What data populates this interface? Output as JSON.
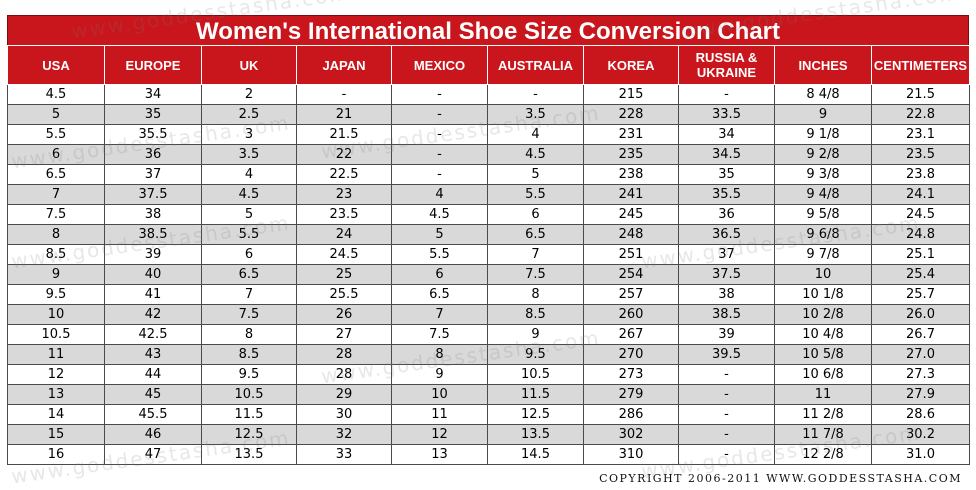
{
  "title": "Women's International Shoe Size Conversion Chart",
  "headers": [
    "USA",
    "EUROPE",
    "UK",
    "JAPAN",
    "MEXICO",
    "AUSTRALIA",
    "KOREA",
    "RUSSIA & UKRAINE",
    "INCHES",
    "CENTIMETERS"
  ],
  "rows": [
    [
      "4.5",
      "34",
      "2",
      "-",
      "-",
      "-",
      "215",
      "-",
      "8 4/8",
      "21.5"
    ],
    [
      "5",
      "35",
      "2.5",
      "21",
      "-",
      "3.5",
      "228",
      "33.5",
      "9",
      "22.8"
    ],
    [
      "5.5",
      "35.5",
      "3",
      "21.5",
      "-",
      "4",
      "231",
      "34",
      "9 1/8",
      "23.1"
    ],
    [
      "6",
      "36",
      "3.5",
      "22",
      "-",
      "4.5",
      "235",
      "34.5",
      "9 2/8",
      "23.5"
    ],
    [
      "6.5",
      "37",
      "4",
      "22.5",
      "-",
      "5",
      "238",
      "35",
      "9 3/8",
      "23.8"
    ],
    [
      "7",
      "37.5",
      "4.5",
      "23",
      "4",
      "5.5",
      "241",
      "35.5",
      "9 4/8",
      "24.1"
    ],
    [
      "7.5",
      "38",
      "5",
      "23.5",
      "4.5",
      "6",
      "245",
      "36",
      "9 5/8",
      "24.5"
    ],
    [
      "8",
      "38.5",
      "5.5",
      "24",
      "5",
      "6.5",
      "248",
      "36.5",
      "9 6/8",
      "24.8"
    ],
    [
      "8.5",
      "39",
      "6",
      "24.5",
      "5.5",
      "7",
      "251",
      "37",
      "9 7/8",
      "25.1"
    ],
    [
      "9",
      "40",
      "6.5",
      "25",
      "6",
      "7.5",
      "254",
      "37.5",
      "10",
      "25.4"
    ],
    [
      "9.5",
      "41",
      "7",
      "25.5",
      "6.5",
      "8",
      "257",
      "38",
      "10 1/8",
      "25.7"
    ],
    [
      "10",
      "42",
      "7.5",
      "26",
      "7",
      "8.5",
      "260",
      "38.5",
      "10 2/8",
      "26.0"
    ],
    [
      "10.5",
      "42.5",
      "8",
      "27",
      "7.5",
      "9",
      "267",
      "39",
      "10 4/8",
      "26.7"
    ],
    [
      "11",
      "43",
      "8.5",
      "28",
      "8",
      "9.5",
      "270",
      "39.5",
      "10 5/8",
      "27.0"
    ],
    [
      "12",
      "44",
      "9.5",
      "28",
      "9",
      "10.5",
      "273",
      "-",
      "10 6/8",
      "27.3"
    ],
    [
      "13",
      "45",
      "10.5",
      "29",
      "10",
      "11.5",
      "279",
      "-",
      "11",
      "27.9"
    ],
    [
      "14",
      "45.5",
      "11.5",
      "30",
      "11",
      "12.5",
      "286",
      "-",
      "11 2/8",
      "28.6"
    ],
    [
      "15",
      "46",
      "12.5",
      "32",
      "12",
      "13.5",
      "302",
      "-",
      "11 7/8",
      "30.2"
    ],
    [
      "16",
      "47",
      "13.5",
      "33",
      "13",
      "14.5",
      "310",
      "-",
      "12 2/8",
      "31.0"
    ]
  ],
  "copyright": "COPYRIGHT 2006-2011 WWW.GODDESSTASHA.COM",
  "watermark": "www.goddesstasha.com",
  "colors": {
    "header_red": "#c8161c",
    "alt_row": "#d9d9d9"
  }
}
